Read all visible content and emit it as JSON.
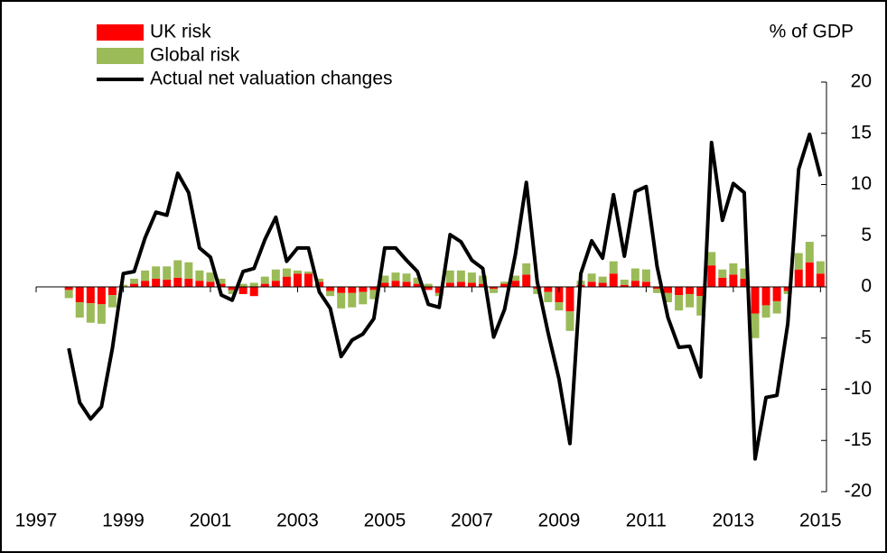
{
  "chart_data": {
    "type": "bar-line",
    "y_label": "% of GDP",
    "xlim": [
      1997,
      2015.2
    ],
    "xticks": [
      1997,
      1999,
      2001,
      2003,
      2005,
      2007,
      2009,
      2011,
      2013,
      2015
    ],
    "ylim": [
      -20,
      20
    ],
    "yticks": [
      -20,
      -15,
      -10,
      -5,
      0,
      5,
      10,
      15,
      20
    ],
    "x": [
      1997.75,
      1998,
      1998.25,
      1998.5,
      1998.75,
      1999,
      1999.25,
      1999.5,
      1999.75,
      2000,
      2000.25,
      2000.5,
      2000.75,
      2001,
      2001.25,
      2001.5,
      2001.75,
      2002,
      2002.25,
      2002.5,
      2002.75,
      2003,
      2003.25,
      2003.5,
      2003.75,
      2004,
      2004.25,
      2004.5,
      2004.75,
      2005,
      2005.25,
      2005.5,
      2005.75,
      2006,
      2006.25,
      2006.5,
      2006.75,
      2007,
      2007.25,
      2007.5,
      2007.75,
      2008,
      2008.25,
      2008.5,
      2008.75,
      2009,
      2009.25,
      2009.5,
      2009.75,
      2010,
      2010.25,
      2010.5,
      2010.75,
      2011,
      2011.25,
      2011.5,
      2011.75,
      2012,
      2012.25,
      2012.5,
      2012.75,
      2013,
      2013.25,
      2013.5,
      2013.75,
      2014,
      2014.25,
      2014.5,
      2014.75,
      2015
    ],
    "series": [
      {
        "name": "UK risk",
        "type": "bar",
        "color": "#ff0000",
        "values": [
          -0.3,
          -1.5,
          -1.6,
          -1.7,
          -0.8,
          0,
          0.3,
          0.6,
          0.8,
          0.7,
          0.9,
          0.8,
          0.6,
          0.5,
          0.3,
          -0.3,
          -0.7,
          -0.9,
          0.3,
          0.6,
          1.0,
          1.3,
          1.3,
          0.5,
          -0.4,
          -0.6,
          -0.6,
          -0.5,
          -0.3,
          0.4,
          0.6,
          0.5,
          0.3,
          -0.3,
          -0.6,
          0.4,
          0.5,
          0.4,
          0.3,
          -0.2,
          0.3,
          0.6,
          1.2,
          -0.2,
          -0.5,
          -1.5,
          -2.4,
          0.2,
          0.5,
          0.4,
          1.3,
          0.2,
          0.6,
          0.5,
          -0.2,
          -0.6,
          -0.8,
          -0.7,
          -0.9,
          2.1,
          0.9,
          1.2,
          0.8,
          -2.6,
          -1.8,
          -1.4,
          -0.4,
          1.7,
          2.4,
          1.3
        ]
      },
      {
        "name": "Global risk",
        "type": "bar",
        "color": "#9bbb59",
        "values": [
          -0.8,
          -1.5,
          -1.9,
          -1.9,
          -1.2,
          0.2,
          0.5,
          1.0,
          1.2,
          1.3,
          1.7,
          1.6,
          1.0,
          0.9,
          0.5,
          -0.4,
          0.3,
          0.4,
          0.7,
          1.1,
          0.8,
          0.3,
          0.2,
          0.3,
          -0.5,
          -1.5,
          -1.4,
          -1.2,
          -0.9,
          0.7,
          0.8,
          0.8,
          0.6,
          0.3,
          -0.3,
          1.2,
          1.1,
          1.0,
          0.8,
          -0.4,
          0.2,
          0.5,
          1.1,
          -0.5,
          -1.0,
          -0.8,
          -1.9,
          0.4,
          0.8,
          0.6,
          1.2,
          0.5,
          1.2,
          1.2,
          -0.4,
          -0.9,
          -1.5,
          -1.3,
          -1.9,
          1.3,
          0.8,
          1.1,
          1.0,
          -2.4,
          -1.2,
          -1.2,
          -0.3,
          1.6,
          2.0,
          1.2
        ]
      },
      {
        "name": "Actual net valuation changes",
        "type": "line",
        "color": "#000000",
        "values": [
          -6,
          -11.3,
          -12.9,
          -11.7,
          -6,
          1.3,
          1.5,
          4.8,
          7.3,
          7.0,
          11.1,
          9.2,
          3.8,
          2.9,
          -0.8,
          -1.3,
          1.5,
          1.8,
          4.6,
          6.8,
          2.5,
          3.8,
          3.8,
          -0.5,
          -2.1,
          -6.8,
          -5.2,
          -4.6,
          -3.1,
          3.8,
          3.8,
          2.6,
          1.5,
          -1.7,
          -2.0,
          5.1,
          4.4,
          2.6,
          1.8,
          -4.9,
          -2.2,
          3.2,
          10.2,
          0.5,
          -4.5,
          -9.0,
          -15.3,
          1.3,
          4.5,
          2.8,
          9.0,
          3.0,
          9.3,
          9.8,
          2.0,
          -3.0,
          -5.9,
          -5.8,
          -8.8,
          14.1,
          6.5,
          10.1,
          9.2,
          -16.8,
          -10.8,
          -10.6,
          -3.6,
          11.5,
          14.9,
          10.8
        ]
      }
    ]
  }
}
